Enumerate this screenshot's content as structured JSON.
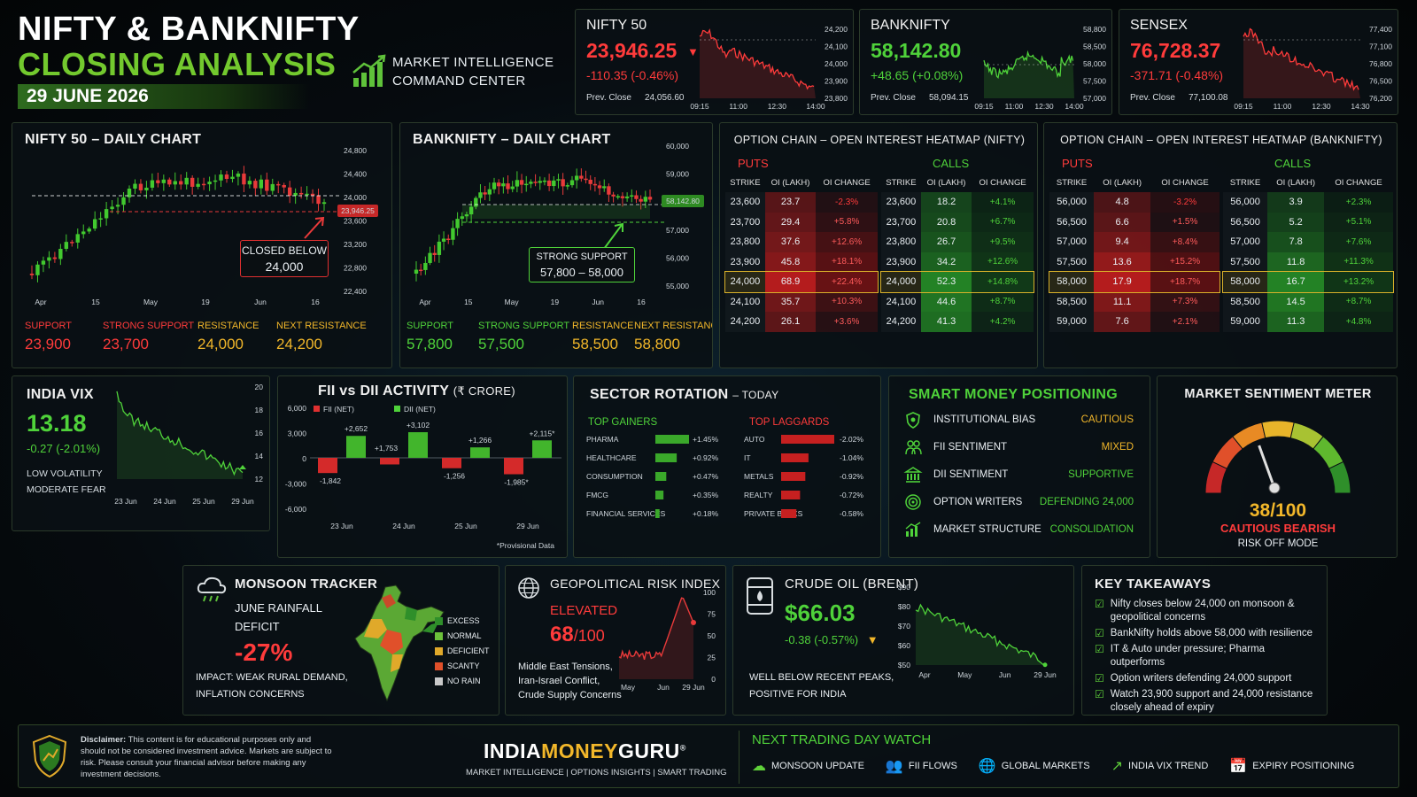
{
  "header": {
    "title1": "NIFTY & BANKNIFTY",
    "title2": "CLOSING ANALYSIS",
    "date": "29 JUNE 2026",
    "sub1": "MARKET INTELLIGENCE",
    "sub2": "COMMAND CENTER"
  },
  "indices": [
    {
      "name": "NIFTY 50",
      "value": "23,946.25",
      "arrow": "▼",
      "change": "-110.35 (-0.46%)",
      "prev_label": "Prev. Close",
      "prev": "24,056.60",
      "yticks": [
        "24,200",
        "24,100",
        "24,000",
        "23,900",
        "23,800"
      ],
      "xticks": [
        "09:15",
        "11:00",
        "12:30",
        "14:00"
      ],
      "trend": "down",
      "color": "#ff3b3b"
    },
    {
      "name": "BANKNIFTY",
      "value": "58,142.80",
      "arrow": "",
      "change": "+48.65 (+0.08%)",
      "prev_label": "Prev. Close",
      "prev": "58,094.15",
      "yticks": [
        "58,800",
        "58,500",
        "58,000",
        "57,500",
        "57,000"
      ],
      "xticks": [
        "09:15",
        "11:00",
        "12:30",
        "14:00"
      ],
      "trend": "flat",
      "color": "#4fd23a"
    },
    {
      "name": "SENSEX",
      "value": "76,728.37",
      "arrow": "",
      "change": "-371.71 (-0.48%)",
      "prev_label": "Prev. Close",
      "prev": "77,100.08",
      "yticks": [
        "77,400",
        "77,100",
        "76,800",
        "76,500",
        "76,200"
      ],
      "xticks": [
        "09:15",
        "11:00",
        "12:30",
        "14:30"
      ],
      "trend": "down",
      "color": "#ff3b3b"
    }
  ],
  "nifty_chart": {
    "title": "NIFTY 50 – DAILY CHART",
    "yticks": [
      "24,800",
      "24,400",
      "24,000",
      "23,600",
      "23,200",
      "22,800",
      "22,400"
    ],
    "xticks": [
      "Apr",
      "15",
      "May",
      "19",
      "Jun",
      "16"
    ],
    "last": "23,946.25",
    "callout1": "CLOSED BELOW",
    "callout2": "24,000",
    "levels": [
      {
        "label": "SUPPORT",
        "value": "23,900",
        "color": "#ff3b3b"
      },
      {
        "label": "STRONG SUPPORT",
        "value": "23,700",
        "color": "#ff3b3b"
      },
      {
        "label": "RESISTANCE",
        "value": "24,000",
        "color": "#f2b72a"
      },
      {
        "label": "NEXT RESISTANCE",
        "value": "24,200",
        "color": "#f2b72a"
      }
    ]
  },
  "bank_chart": {
    "title": "BANKNIFTY – DAILY CHART",
    "yticks": [
      "60,000",
      "59,000",
      "58,500",
      "57,000",
      "56,000",
      "55,000"
    ],
    "xticks": [
      "Apr",
      "15",
      "May",
      "19",
      "Jun",
      "16"
    ],
    "last": "58,142.80",
    "callout1": "STRONG SUPPORT",
    "callout2": "57,800 – 58,000",
    "levels": [
      {
        "label": "SUPPORT",
        "value": "57,800",
        "color": "#4fd23a"
      },
      {
        "label": "STRONG SUPPORT",
        "value": "57,500",
        "color": "#4fd23a"
      },
      {
        "label": "RESISTANCE",
        "value": "58,500",
        "color": "#f2b72a"
      },
      {
        "label": "NEXT RESISTANCE",
        "value": "58,800",
        "color": "#f2b72a"
      }
    ]
  },
  "oi_nifty": {
    "title": "OPTION CHAIN – OPEN INTEREST HEATMAP (NIFTY)",
    "puts": "PUTS",
    "calls": "CALLS",
    "headers": [
      "STRIKE",
      "OI (LAKH)",
      "OI CHANGE"
    ],
    "puts_rows": [
      [
        "23,600",
        "23.7",
        "-2.3%"
      ],
      [
        "23,700",
        "29.4",
        "+5.8%"
      ],
      [
        "23,800",
        "37.6",
        "+12.6%"
      ],
      [
        "23,900",
        "45.8",
        "+18.1%"
      ],
      [
        "24,000",
        "68.9",
        "+22.4%"
      ],
      [
        "24,100",
        "35.7",
        "+10.3%"
      ],
      [
        "24,200",
        "26.1",
        "+3.6%"
      ]
    ],
    "calls_rows": [
      [
        "23,600",
        "18.2",
        "+4.1%"
      ],
      [
        "23,700",
        "20.8",
        "+6.7%"
      ],
      [
        "23,800",
        "26.7",
        "+9.5%"
      ],
      [
        "23,900",
        "34.2",
        "+12.6%"
      ],
      [
        "24,000",
        "52.3",
        "+14.8%"
      ],
      [
        "24,100",
        "44.6",
        "+8.7%"
      ],
      [
        "24,200",
        "41.3",
        "+4.2%"
      ]
    ]
  },
  "oi_bank": {
    "title": "OPTION CHAIN – OPEN INTEREST HEATMAP (BANKNIFTY)",
    "puts": "PUTS",
    "calls": "CALLS",
    "headers": [
      "STRIKE",
      "OI (LAKH)",
      "OI CHANGE"
    ],
    "puts_rows": [
      [
        "56,000",
        "4.8",
        "-3.2%"
      ],
      [
        "56,500",
        "6.6",
        "+1.5%"
      ],
      [
        "57,000",
        "9.4",
        "+8.4%"
      ],
      [
        "57,500",
        "13.6",
        "+15.2%"
      ],
      [
        "58,000",
        "17.9",
        "+18.7%"
      ],
      [
        "58,500",
        "11.1",
        "+7.3%"
      ],
      [
        "59,000",
        "7.6",
        "+2.1%"
      ]
    ],
    "calls_rows": [
      [
        "56,000",
        "3.9",
        "+2.3%"
      ],
      [
        "56,500",
        "5.2",
        "+5.1%"
      ],
      [
        "57,000",
        "7.8",
        "+7.6%"
      ],
      [
        "57,500",
        "11.8",
        "+11.3%"
      ],
      [
        "58,000",
        "16.7",
        "+13.2%"
      ],
      [
        "58,500",
        "14.5",
        "+8.7%"
      ],
      [
        "59,000",
        "11.3",
        "+4.8%"
      ]
    ]
  },
  "vix": {
    "title": "INDIA VIX",
    "value": "13.18",
    "change": "-0.27 (-2.01%)",
    "note1": "LOW VOLATILITY",
    "note2": "MODERATE FEAR",
    "yticks": [
      "20",
      "18",
      "16",
      "14",
      "12"
    ],
    "xticks": [
      "23 Jun",
      "24 Jun",
      "25 Jun",
      "29 Jun"
    ]
  },
  "fii": {
    "title": "FII vs DII ACTIVITY",
    "unit": "(₹ CRORE)",
    "legend_fii": "FII (NET)",
    "legend_dii": "DII (NET)",
    "yticks": [
      "6,000",
      "3,000",
      "0",
      "-3,000",
      "-6,000"
    ],
    "days": [
      "23 Jun",
      "24 Jun",
      "25 Jun",
      "29 Jun"
    ],
    "fii_vals": [
      -1842,
      -800,
      -1256,
      -1985
    ],
    "dii_vals": [
      2652,
      3102,
      1266,
      2115
    ],
    "fii_labels": [
      "-1,842",
      "",
      "-1,256",
      "-1,985*"
    ],
    "dii_labels": [
      "+2,652",
      "+3,102",
      "+1,266",
      "+2,115*"
    ],
    "extra_label": "+1,753",
    "note": "*Provisional Data"
  },
  "sector": {
    "title": "SECTOR ROTATION",
    "subtitle": "– TODAY",
    "gainers_title": "TOP GAINERS",
    "laggards_title": "TOP LAGGARDS",
    "gainers": [
      {
        "name": "PHARMA",
        "value": "+1.45%",
        "v": 1.45
      },
      {
        "name": "HEALTHCARE",
        "value": "+0.92%",
        "v": 0.92
      },
      {
        "name": "CONSUMPTION",
        "value": "+0.47%",
        "v": 0.47
      },
      {
        "name": "FMCG",
        "value": "+0.35%",
        "v": 0.35
      },
      {
        "name": "FINANCIAL SERVICES",
        "value": "+0.18%",
        "v": 0.18
      }
    ],
    "laggards": [
      {
        "name": "AUTO",
        "value": "-2.02%",
        "v": 2.02
      },
      {
        "name": "IT",
        "value": "-1.04%",
        "v": 1.04
      },
      {
        "name": "METALS",
        "value": "-0.92%",
        "v": 0.92
      },
      {
        "name": "REALTY",
        "value": "-0.72%",
        "v": 0.72
      },
      {
        "name": "PRIVATE BANKS",
        "value": "-0.58%",
        "v": 0.58
      }
    ]
  },
  "smart": {
    "title": "SMART MONEY POSITIONING",
    "rows": [
      {
        "icon": "shield-icon",
        "label": "INSTITUTIONAL BIAS",
        "value": "CAUTIOUS",
        "color": "#f2b72a"
      },
      {
        "icon": "people-icon",
        "label": "FII SENTIMENT",
        "value": "MIXED",
        "color": "#f2b72a"
      },
      {
        "icon": "bank-icon",
        "label": "DII SENTIMENT",
        "value": "SUPPORTIVE",
        "color": "#4fd23a"
      },
      {
        "icon": "target-icon",
        "label": "OPTION WRITERS",
        "value": "DEFENDING 24,000",
        "color": "#4fd23a"
      },
      {
        "icon": "chart-icon",
        "label": "MARKET STRUCTURE",
        "value": "CONSOLIDATION",
        "color": "#4fd23a"
      }
    ]
  },
  "sentiment": {
    "title": "MARKET SENTIMENT METER",
    "score": "38/100",
    "score_value": 38,
    "label": "CAUTIOUS BEARISH",
    "mode": "RISK OFF MODE"
  },
  "monsoon": {
    "title": "MONSOON TRACKER",
    "line1": "JUNE RAINFALL",
    "line2": "DEFICIT",
    "value": "-27%",
    "impact1": "IMPACT: WEAK RURAL DEMAND,",
    "impact2": "INFLATION CONCERNS",
    "legend": [
      {
        "label": "EXCESS",
        "color": "#2f8f2a"
      },
      {
        "label": "NORMAL",
        "color": "#6cc13a"
      },
      {
        "label": "DEFICIENT",
        "color": "#e0a92a"
      },
      {
        "label": "SCANTY",
        "color": "#e0502a"
      },
      {
        "label": "NO RAIN",
        "color": "#c9c9c9"
      }
    ]
  },
  "geo": {
    "title": "GEOPOLITICAL RISK INDEX",
    "level": "ELEVATED",
    "value": "68",
    "max": "/100",
    "line1": "Middle East Tensions,",
    "line2": "Iran-Israel Conflict,",
    "line3": "Crude Supply Concerns",
    "yticks": [
      "100",
      "75",
      "50",
      "25",
      "0"
    ],
    "xticks": [
      "May",
      "Jun",
      "29 Jun"
    ]
  },
  "crude": {
    "title": "CRUDE OIL",
    "title2": "(BRENT)",
    "value": "$66.03",
    "change": "-0.38 (-0.57%)",
    "line1": "WELL BELOW RECENT PEAKS,",
    "line2": "POSITIVE FOR INDIA",
    "yticks": [
      "$90",
      "$80",
      "$70",
      "$60",
      "$50"
    ],
    "xticks": [
      "Apr",
      "May",
      "Jun",
      "29 Jun"
    ]
  },
  "takeaways": {
    "title": "KEY TAKEAWAYS",
    "items": [
      "Nifty closes below 24,000 on monsoon & geopolitical concerns",
      "BankNifty holds above 58,000 with resilience",
      "IT & Auto under pressure; Pharma outperforms",
      "Option writers defending 24,000 support",
      "Watch 23,900 support and 24,000 resistance closely ahead of expiry"
    ]
  },
  "footer": {
    "disclaimer_label": "Disclaimer:",
    "disclaimer": "This content is for educational purposes only and should not be considered investment advice. Markets are subject to risk. Please consult your financial advisor before making any investment decisions.",
    "brand1": "INDIA",
    "brand2": "MONEY",
    "brand3": "GURU",
    "brand_mark": "®",
    "tagline": "MARKET INTELLIGENCE | OPTIONS INSIGHTS | SMART TRADING",
    "watch_title": "NEXT TRADING DAY WATCH",
    "watch": [
      {
        "icon": "cloud-icon",
        "glyph": "☁",
        "label": "MONSOON UPDATE"
      },
      {
        "icon": "people-icon",
        "glyph": "👥",
        "label": "FII FLOWS"
      },
      {
        "icon": "globe-icon",
        "glyph": "🌐",
        "label": "GLOBAL MARKETS"
      },
      {
        "icon": "trend-icon",
        "glyph": "↗",
        "label": "INDIA VIX TREND"
      },
      {
        "icon": "calendar-icon",
        "glyph": "📅",
        "label": "EXPIRY POSITIONING"
      }
    ]
  }
}
